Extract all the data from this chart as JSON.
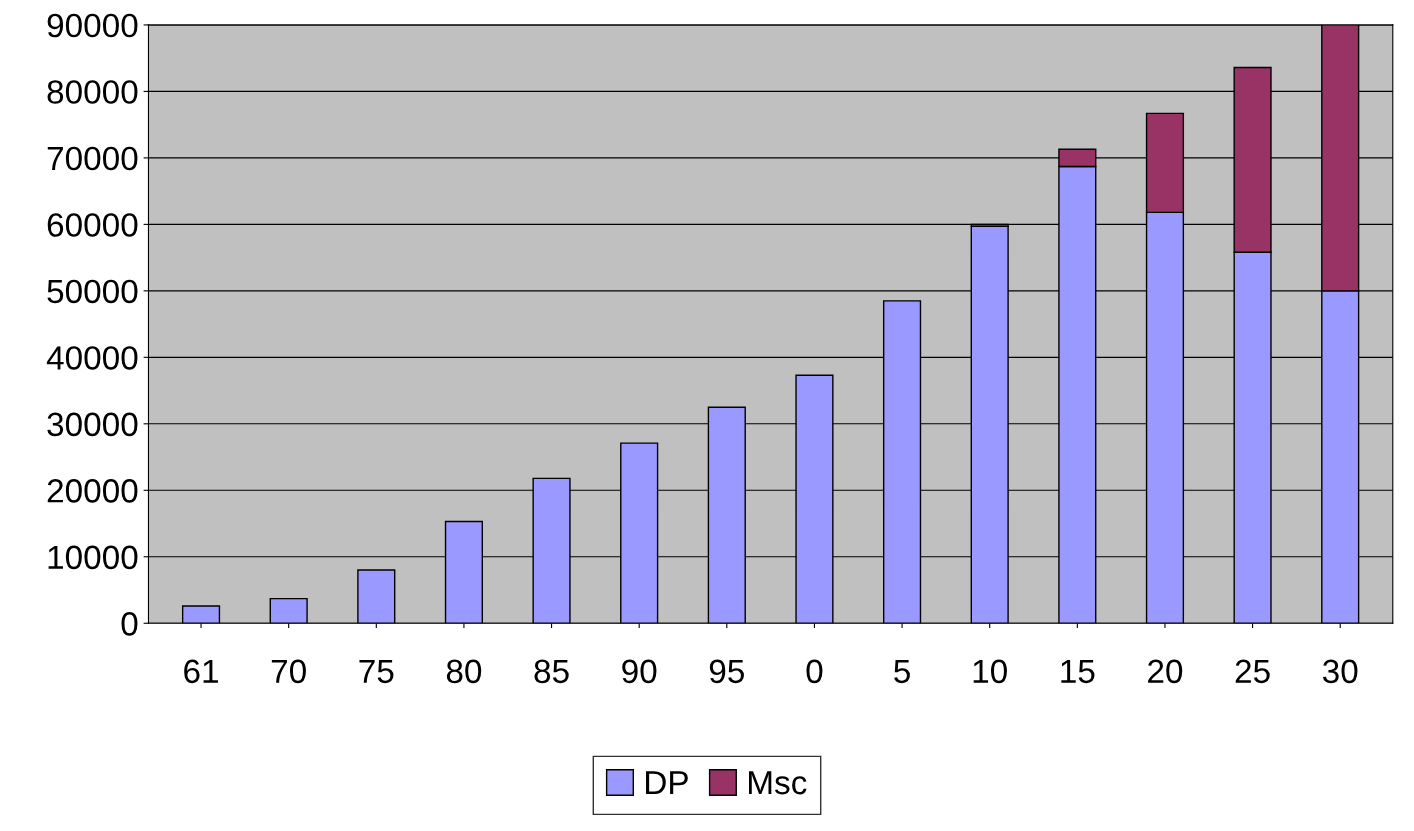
{
  "chart_data": {
    "type": "bar",
    "stacked": true,
    "categories": [
      "61",
      "70",
      "75",
      "80",
      "85",
      "90",
      "95",
      "0",
      "5",
      "10",
      "15",
      "20",
      "25",
      "30"
    ],
    "series": [
      {
        "name": "DP",
        "color": "#9999ff",
        "values": [
          2600,
          3700,
          8000,
          15300,
          21800,
          27100,
          32500,
          37300,
          48500,
          59700,
          68700,
          61800,
          55800,
          50000
        ]
      },
      {
        "name": "Msc",
        "color": "#993366",
        "values": [
          null,
          null,
          null,
          null,
          null,
          null,
          null,
          null,
          null,
          300,
          2600,
          14900,
          27800,
          40000
        ]
      }
    ],
    "ylim": [
      0,
      90000
    ],
    "yticks": [
      0,
      10000,
      20000,
      30000,
      40000,
      50000,
      60000,
      70000,
      80000,
      90000
    ],
    "grid": "y",
    "legend": "bottom"
  }
}
